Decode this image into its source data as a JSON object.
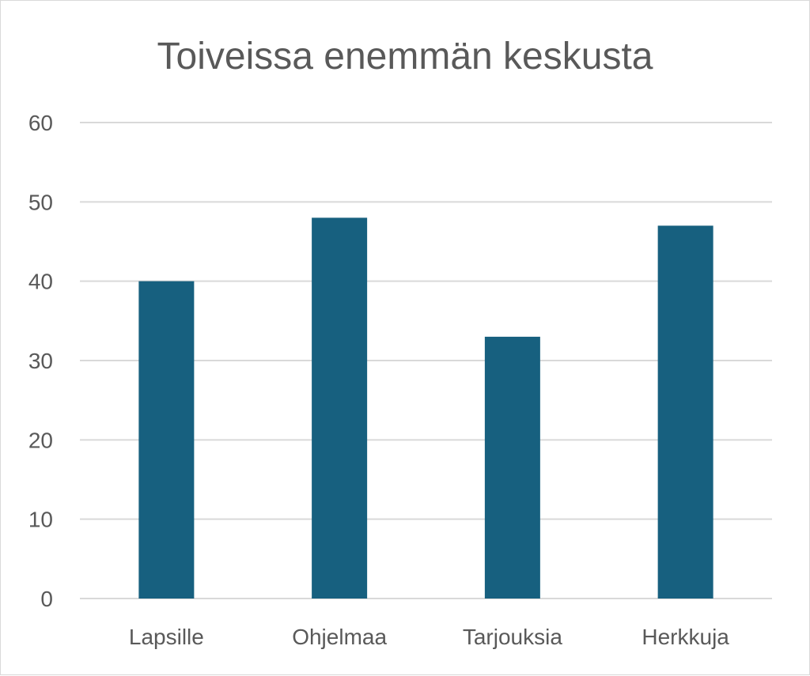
{
  "chart_data": {
    "type": "bar",
    "title": "Toiveissa enemmän keskusta",
    "categories": [
      "Lapsille",
      "Ohjelmaa",
      "Tarjouksia",
      "Herkkuja"
    ],
    "values": [
      40,
      48,
      33,
      47
    ],
    "ylim": [
      0,
      60
    ],
    "yticks": [
      0,
      10,
      20,
      30,
      40,
      50,
      60
    ],
    "grid": true,
    "legend": "none",
    "bar_color": "#17607f",
    "grid_color": "#d9d9d9",
    "text_color": "#595959"
  }
}
